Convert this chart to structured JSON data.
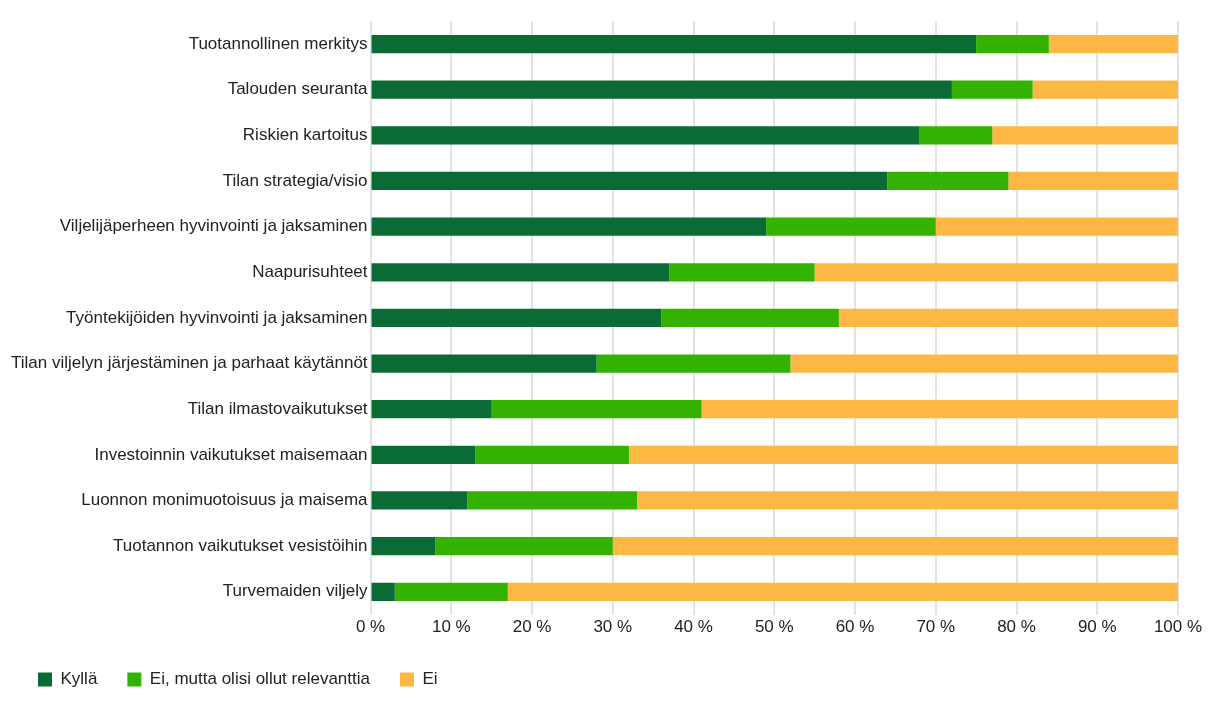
{
  "chart_data": {
    "type": "bar",
    "orientation": "horizontal",
    "stacked": true,
    "categories": [
      "Tuotannollinen merkitys",
      "Talouden seuranta",
      "Riskien kartoitus",
      "Tilan strategia/visio",
      "Viljelijäperheen hyvinvointi ja jaksaminen",
      "Naapurisuhteet",
      "Työntekijöiden hyvinvointi ja jaksaminen",
      "Tilan viljelyn järjestäminen ja parhaat käytännöt",
      "Tilan ilmastovaikutukset",
      "Investoinnin vaikutukset maisemaan",
      "Luonnon monimuotoisuus ja maisema",
      "Tuotannon vaikutukset vesistöihin",
      "Turvemaiden viljely"
    ],
    "series": [
      {
        "name": "Kyllä",
        "color": "#0b6b35",
        "values": [
          75,
          72,
          68,
          64,
          49,
          37,
          36,
          28,
          15,
          13,
          12,
          8,
          3
        ]
      },
      {
        "name": "Ei, mutta olisi ollut relevanttia",
        "color": "#33b200",
        "values": [
          9,
          10,
          9,
          15,
          21,
          18,
          22,
          24,
          26,
          19,
          21,
          22,
          14
        ]
      },
      {
        "name": "Ei",
        "color": "#fdb843",
        "values": [
          16,
          18,
          23,
          21,
          30,
          45,
          42,
          48,
          59,
          68,
          67,
          70,
          83
        ]
      }
    ],
    "xlim": [
      0,
      100
    ],
    "xticks": [
      {
        "value": 0,
        "label": "0 %"
      },
      {
        "value": 10,
        "label": "10 %"
      },
      {
        "value": 20,
        "label": "20 %"
      },
      {
        "value": 30,
        "label": "30 %"
      },
      {
        "value": 40,
        "label": "40 %"
      },
      {
        "value": 50,
        "label": "50 %"
      },
      {
        "value": 60,
        "label": "60 %"
      },
      {
        "value": 70,
        "label": "70 %"
      },
      {
        "value": 80,
        "label": "80 %"
      },
      {
        "value": 90,
        "label": "90 %"
      },
      {
        "value": 100,
        "label": "100 %"
      }
    ],
    "grid": "x",
    "legend": "bottom left"
  }
}
